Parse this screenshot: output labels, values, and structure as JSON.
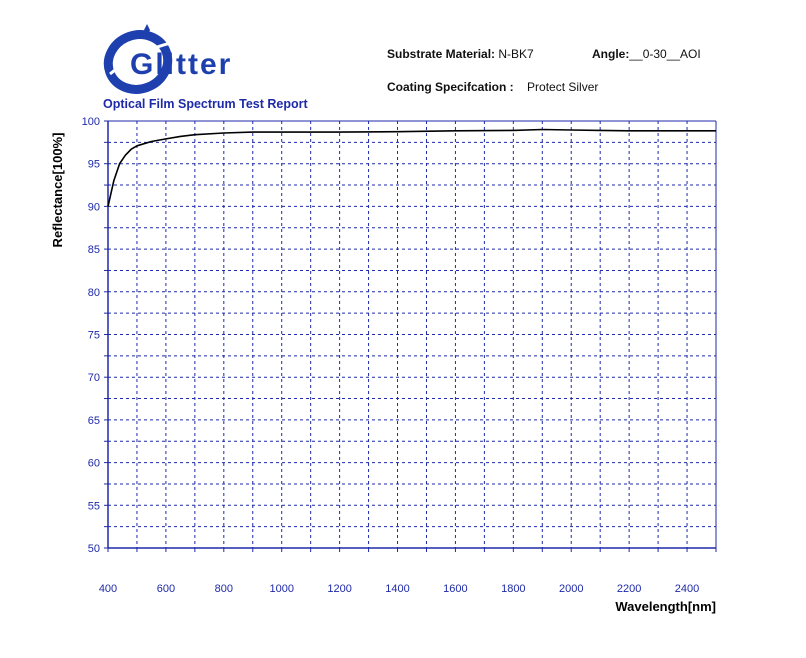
{
  "header": {
    "brand": "Glitter",
    "report_title": "Optical Film Spectrum Test Report",
    "substrate_label": "Substrate Material:",
    "substrate_value": "N-BK7",
    "angle_label": "Angle:",
    "angle_value": "__0-30__AOI",
    "coating_label": "Coating Specifcation :",
    "coating_value": "Protect Silver"
  },
  "colors": {
    "axis": "#1e2aa8",
    "grid": "#1e2aa8",
    "curve": "#000000",
    "brand": "#1e3fae"
  },
  "chart_data": {
    "type": "line",
    "xlabel": "Wavelength[nm]",
    "ylabel": "Reflectance[100%]",
    "xlim": [
      400,
      2500
    ],
    "ylim": [
      50,
      100
    ],
    "grid": true,
    "x_ticks": [
      400,
      600,
      800,
      1000,
      1200,
      1400,
      1600,
      1800,
      2000,
      2200,
      2400
    ],
    "y_ticks": [
      50,
      55,
      60,
      65,
      70,
      75,
      80,
      85,
      90,
      95,
      100
    ],
    "series": [
      {
        "x": [
          400,
          420,
          440,
          460,
          480,
          500,
          550,
          600,
          650,
          700,
          800,
          900,
          1000,
          1200,
          1400,
          1600,
          1800,
          1900,
          2000,
          2100,
          2200,
          2400,
          2500
        ],
        "y": [
          90.0,
          93.0,
          95.0,
          96.0,
          96.7,
          97.1,
          97.6,
          97.9,
          98.2,
          98.4,
          98.6,
          98.7,
          98.7,
          98.7,
          98.75,
          98.85,
          98.9,
          99.0,
          98.95,
          98.9,
          98.85,
          98.85,
          98.85
        ]
      }
    ]
  }
}
